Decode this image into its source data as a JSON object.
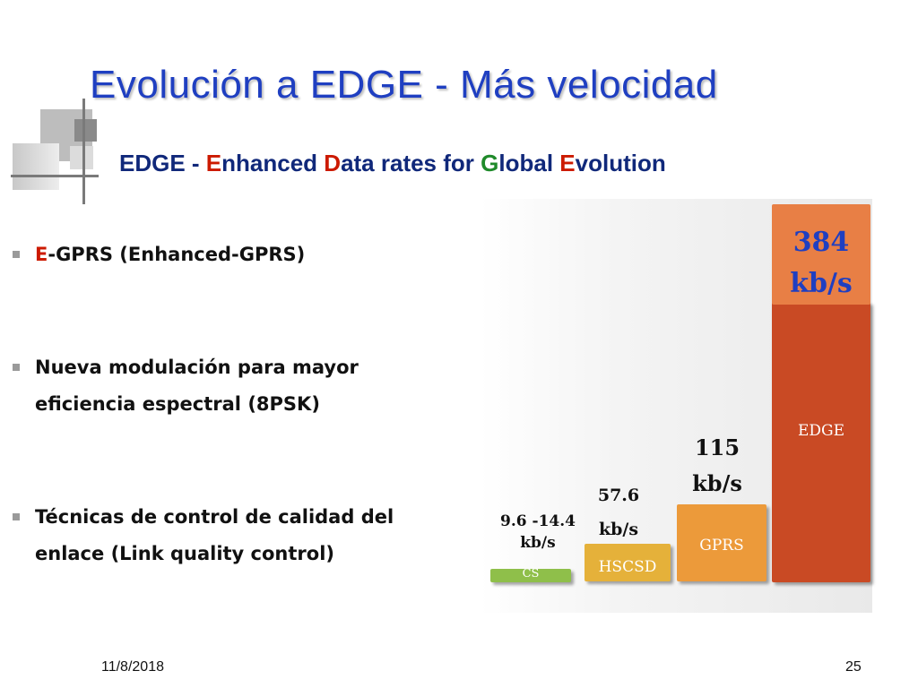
{
  "title": "Evolución a EDGE - Más velocidad",
  "subtitle": {
    "part1": "EDGE - ",
    "e": "E",
    "e_rest": "nhanced ",
    "d": "D",
    "d_rest": "ata rates for ",
    "g": "G",
    "g_rest": "lobal ",
    "ev": "E",
    "ev_rest": "volution"
  },
  "bullets": [
    {
      "lead": "E",
      "text": "-GPRS (Enhanced-GPRS)"
    },
    {
      "line1": "Nueva modulación para mayor",
      "line2": "eficiencia espectral (8PSK)"
    },
    {
      "line1": "Técnicas de control de calidad del",
      "line2": "enlace (Link quality control)"
    }
  ],
  "chart_data": {
    "type": "bar",
    "categories": [
      "CS",
      "HSCSD",
      "GPRS",
      "EDGE"
    ],
    "values": [
      14.4,
      57.6,
      115,
      384
    ],
    "value_labels": [
      [
        "9.6 -14.4",
        "kb/s"
      ],
      [
        "57.6",
        "kb/s"
      ],
      [
        "115",
        "kb/s"
      ],
      [
        "384",
        "kb/s"
      ]
    ],
    "colors": [
      "#8fbf4a",
      "#e5b13a",
      "#ec9a3a",
      "#c94a24"
    ],
    "edge_cap_color": "#e87f45",
    "unit": "kb/s"
  },
  "footer": {
    "date": "11/8/2018",
    "page": "25"
  }
}
